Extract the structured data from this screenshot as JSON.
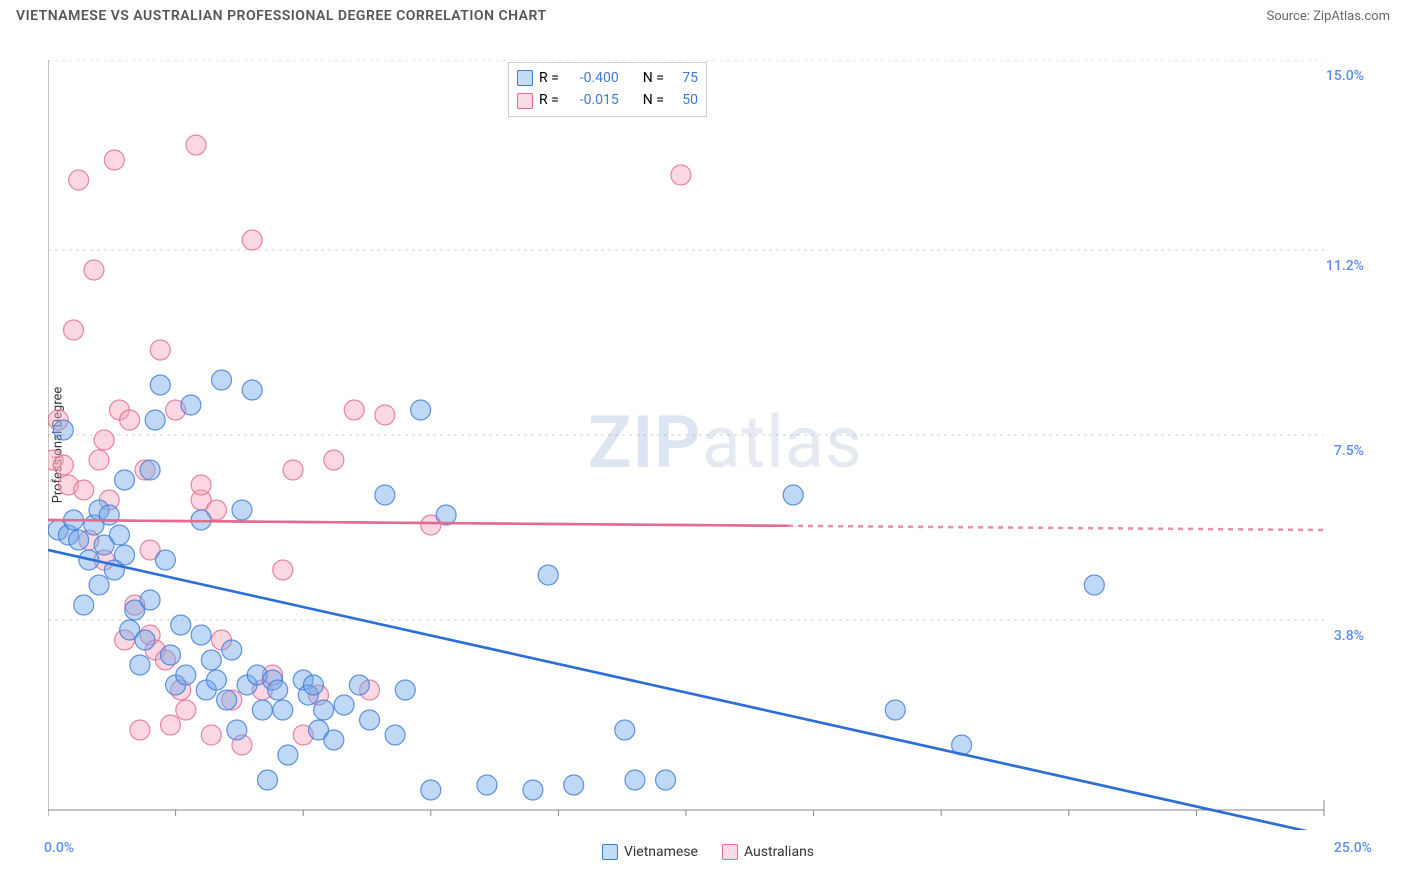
{
  "title": "VIETNAMESE VS AUSTRALIAN PROFESSIONAL DEGREE CORRELATION CHART",
  "source_label": "Source: ZipAtlas.com",
  "y_axis_label": "Professional Degree",
  "watermark": {
    "zip": "ZIP",
    "atlas": "atlas"
  },
  "chart": {
    "type": "scatter",
    "background_color": "#ffffff",
    "grid_color": "#d0d0d0",
    "axis_color": "#888888",
    "xlim": [
      0,
      25
    ],
    "ylim": [
      0,
      15
    ],
    "x_tick_positions": [
      0,
      2.5,
      5,
      7.5,
      10,
      12.5,
      15,
      17.5,
      20,
      22.5,
      25
    ],
    "y_grid_lines": [
      3.8,
      7.5,
      11.2,
      15.0
    ],
    "x_min_label": "0.0%",
    "x_max_label": "25.0%",
    "y_tick_labels": [
      "3.8%",
      "7.5%",
      "11.2%",
      "15.0%"
    ],
    "tick_label_color": "#5b8def",
    "tick_label_fontsize": 14,
    "marker_radius": 10,
    "marker_opacity": 0.45,
    "series": [
      {
        "name": "Vietnamese",
        "color": "#6fa8e8",
        "stroke": "#3f7bd6",
        "line_color": "#2d6fd6",
        "line_width": 2.5,
        "trend": {
          "y_at_x0": 5.2,
          "y_at_xmax": -0.5
        },
        "R": "-0.400",
        "N": "75",
        "points": [
          [
            0.2,
            5.6
          ],
          [
            0.3,
            7.6
          ],
          [
            0.4,
            5.5
          ],
          [
            0.5,
            5.8
          ],
          [
            0.6,
            5.4
          ],
          [
            0.7,
            4.1
          ],
          [
            0.8,
            5.0
          ],
          [
            0.9,
            5.7
          ],
          [
            1.0,
            6.0
          ],
          [
            1.1,
            5.3
          ],
          [
            1.2,
            5.9
          ],
          [
            1.3,
            4.8
          ],
          [
            1.4,
            5.5
          ],
          [
            1.5,
            5.1
          ],
          [
            1.5,
            6.6
          ],
          [
            1.6,
            3.6
          ],
          [
            1.7,
            4.0
          ],
          [
            1.8,
            2.9
          ],
          [
            1.9,
            3.4
          ],
          [
            2.0,
            6.8
          ],
          [
            2.1,
            7.8
          ],
          [
            2.2,
            8.5
          ],
          [
            2.3,
            5.0
          ],
          [
            2.4,
            3.1
          ],
          [
            2.5,
            2.5
          ],
          [
            2.6,
            3.7
          ],
          [
            2.7,
            2.7
          ],
          [
            2.8,
            8.1
          ],
          [
            3.0,
            5.8
          ],
          [
            3.1,
            2.4
          ],
          [
            3.2,
            3.0
          ],
          [
            3.3,
            2.6
          ],
          [
            3.4,
            8.6
          ],
          [
            3.5,
            2.2
          ],
          [
            3.6,
            3.2
          ],
          [
            3.7,
            1.6
          ],
          [
            3.8,
            6.0
          ],
          [
            3.9,
            2.5
          ],
          [
            4.0,
            8.4
          ],
          [
            4.1,
            2.7
          ],
          [
            4.2,
            2.0
          ],
          [
            4.3,
            0.6
          ],
          [
            4.4,
            2.6
          ],
          [
            4.5,
            2.4
          ],
          [
            4.6,
            2.0
          ],
          [
            4.7,
            1.1
          ],
          [
            5.0,
            2.6
          ],
          [
            5.1,
            2.3
          ],
          [
            5.2,
            2.5
          ],
          [
            5.3,
            1.6
          ],
          [
            5.4,
            2.0
          ],
          [
            5.6,
            1.4
          ],
          [
            5.8,
            2.1
          ],
          [
            6.1,
            2.5
          ],
          [
            6.3,
            1.8
          ],
          [
            6.6,
            6.3
          ],
          [
            6.8,
            1.5
          ],
          [
            7.0,
            2.4
          ],
          [
            7.3,
            8.0
          ],
          [
            7.5,
            0.4
          ],
          [
            7.8,
            5.9
          ],
          [
            8.6,
            0.5
          ],
          [
            9.5,
            0.4
          ],
          [
            9.8,
            4.7
          ],
          [
            11.3,
            1.6
          ],
          [
            11.5,
            0.6
          ],
          [
            12.1,
            0.6
          ],
          [
            14.6,
            6.3
          ],
          [
            16.6,
            2.0
          ],
          [
            17.9,
            1.3
          ],
          [
            20.5,
            4.5
          ],
          [
            10.3,
            0.5
          ],
          [
            3.0,
            3.5
          ],
          [
            2.0,
            4.2
          ],
          [
            1.0,
            4.5
          ]
        ]
      },
      {
        "name": "Australians",
        "color": "#f4a6bd",
        "stroke": "#e26b8f",
        "line_color": "#e26b8f",
        "line_width": 2.5,
        "trend": {
          "y_at_x0": 5.8,
          "y_at_xmax": 5.6,
          "solid_until_x": 14.5
        },
        "R": "-0.015",
        "N": "50",
        "points": [
          [
            0.1,
            7.0
          ],
          [
            0.2,
            7.8
          ],
          [
            0.3,
            6.9
          ],
          [
            0.4,
            6.5
          ],
          [
            0.5,
            9.6
          ],
          [
            0.6,
            12.6
          ],
          [
            0.7,
            6.4
          ],
          [
            0.8,
            5.4
          ],
          [
            0.9,
            10.8
          ],
          [
            1.0,
            7.0
          ],
          [
            1.1,
            7.4
          ],
          [
            1.1,
            5.0
          ],
          [
            1.2,
            6.2
          ],
          [
            1.3,
            13.0
          ],
          [
            1.4,
            8.0
          ],
          [
            1.5,
            3.4
          ],
          [
            1.6,
            7.8
          ],
          [
            1.7,
            4.1
          ],
          [
            1.8,
            1.6
          ],
          [
            1.9,
            6.8
          ],
          [
            2.0,
            3.5
          ],
          [
            2.1,
            3.2
          ],
          [
            2.2,
            9.2
          ],
          [
            2.3,
            3.0
          ],
          [
            2.4,
            1.7
          ],
          [
            2.5,
            8.0
          ],
          [
            2.6,
            2.4
          ],
          [
            2.7,
            2.0
          ],
          [
            2.9,
            13.3
          ],
          [
            3.0,
            6.2
          ],
          [
            3.2,
            1.5
          ],
          [
            3.3,
            6.0
          ],
          [
            3.4,
            3.4
          ],
          [
            3.6,
            2.2
          ],
          [
            3.8,
            1.3
          ],
          [
            4.0,
            11.4
          ],
          [
            4.2,
            2.4
          ],
          [
            4.4,
            2.7
          ],
          [
            4.6,
            4.8
          ],
          [
            4.8,
            6.8
          ],
          [
            5.0,
            1.5
          ],
          [
            5.3,
            2.3
          ],
          [
            5.6,
            7.0
          ],
          [
            6.0,
            8.0
          ],
          [
            6.3,
            2.4
          ],
          [
            6.6,
            7.9
          ],
          [
            7.5,
            5.7
          ],
          [
            12.4,
            12.7
          ],
          [
            3.0,
            6.5
          ],
          [
            2.0,
            5.2
          ]
        ]
      }
    ]
  },
  "stats_legend": {
    "R_label": "R =",
    "N_label": "N =",
    "value_color": "#3f7bd6"
  },
  "bottom_legend": {
    "items": [
      "Vietnamese",
      "Australians"
    ]
  }
}
